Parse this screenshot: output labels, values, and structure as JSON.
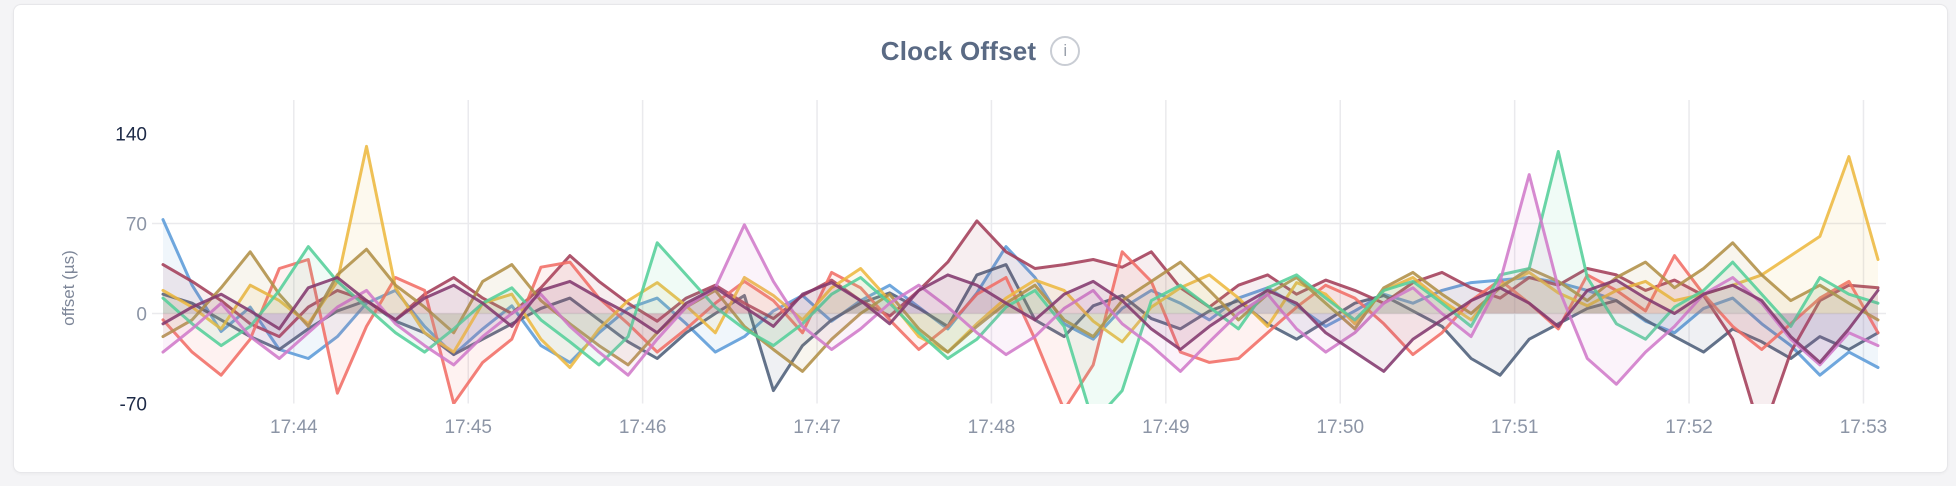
{
  "header": {
    "title": "Clock Offset",
    "info_icon_glyph": "i"
  },
  "colors": {
    "page_background": "#f4f4f6",
    "card_background": "#ffffff",
    "card_border": "#e7e7ea",
    "title_text": "#5a6a84",
    "tick_text": "#8c95a6",
    "tick_text_strong": "#1d2a47",
    "gridline": "#eaeaed"
  },
  "chart_data": {
    "type": "line",
    "title": "Clock Offset",
    "xlabel": "",
    "ylabel": "offset (µs)",
    "ylim": [
      -70,
      140
    ],
    "grid": true,
    "legend_position": "none",
    "x_start_time": "17:43:15",
    "x_interval_seconds": 10,
    "xticks": [
      "17:44",
      "17:45",
      "17:46",
      "17:47",
      "17:48",
      "17:49",
      "17:50",
      "17:51",
      "17:52",
      "17:53"
    ],
    "yticks": [
      {
        "value": 140,
        "label": "140",
        "strong": true,
        "grid": false
      },
      {
        "value": 70,
        "label": "70",
        "strong": false,
        "grid": true
      },
      {
        "value": 0,
        "label": "0",
        "strong": false,
        "grid": true
      },
      {
        "value": -70,
        "label": "-70",
        "strong": true,
        "grid": false
      }
    ],
    "series": [
      {
        "name": "blue",
        "color": "#5b9bd8",
        "values": [
          73,
          22,
          -14,
          5,
          -28,
          -35,
          -18,
          8,
          18,
          -10,
          -32,
          -12,
          6,
          -25,
          -38,
          -15,
          4,
          12,
          -8,
          -30,
          -18,
          2,
          14,
          -6,
          10,
          22,
          5,
          -12,
          16,
          52,
          28,
          -8,
          -20,
          4,
          18,
          8,
          -5,
          12,
          20,
          6,
          -10,
          2,
          15,
          8,
          18,
          24,
          26,
          28,
          24,
          18,
          10,
          -6,
          -15,
          4,
          12,
          -8,
          -25,
          -48,
          -30,
          -42
        ]
      },
      {
        "name": "slate",
        "color": "#4d5e7a",
        "values": [
          15,
          8,
          -5,
          -18,
          -28,
          -12,
          2,
          10,
          -6,
          -15,
          -32,
          -20,
          -8,
          4,
          12,
          -5,
          -22,
          -35,
          -15,
          0,
          14,
          -60,
          -25,
          -5,
          8,
          16,
          4,
          -10,
          30,
          38,
          -5,
          -18,
          6,
          14,
          -4,
          -12,
          2,
          10,
          -8,
          -20,
          -6,
          8,
          14,
          2,
          -10,
          -35,
          -48,
          -20,
          -8,
          4,
          10,
          -5,
          -18,
          -30,
          -12,
          -22,
          -35,
          -18,
          -28,
          -15
        ]
      },
      {
        "name": "maroon",
        "color": "#a33e59",
        "values": [
          38,
          25,
          10,
          -8,
          -18,
          5,
          18,
          10,
          -5,
          15,
          28,
          12,
          0,
          20,
          45,
          25,
          8,
          -6,
          12,
          22,
          8,
          -4,
          14,
          26,
          10,
          -2,
          18,
          40,
          72,
          48,
          35,
          38,
          42,
          36,
          48,
          20,
          5,
          22,
          30,
          15,
          26,
          18,
          8,
          24,
          32,
          20,
          12,
          28,
          22,
          35,
          30,
          18,
          26,
          14,
          -20,
          -95,
          -30,
          10,
          22,
          20
        ]
      },
      {
        "name": "salmon",
        "color": "#f16d65",
        "values": [
          -5,
          -30,
          -48,
          -20,
          35,
          42,
          -62,
          -10,
          28,
          18,
          -70,
          -38,
          -20,
          36,
          40,
          12,
          -8,
          -30,
          -12,
          8,
          25,
          10,
          -15,
          32,
          20,
          -5,
          -28,
          -10,
          15,
          28,
          -20,
          -75,
          -40,
          48,
          25,
          -30,
          -38,
          -35,
          -15,
          5,
          22,
          12,
          -8,
          -32,
          -15,
          10,
          26,
          8,
          -12,
          30,
          18,
          2,
          45,
          15,
          -10,
          -28,
          -8,
          12,
          25,
          -15
        ]
      },
      {
        "name": "yellow",
        "color": "#edb840",
        "values": [
          18,
          5,
          -12,
          22,
          10,
          -8,
          25,
          130,
          20,
          -15,
          -30,
          8,
          15,
          -20,
          -42,
          -12,
          10,
          24,
          6,
          -15,
          28,
          14,
          -5,
          20,
          35,
          10,
          -18,
          -30,
          -8,
          12,
          26,
          18,
          -6,
          -22,
          5,
          20,
          30,
          12,
          -10,
          24,
          15,
          -8,
          18,
          28,
          10,
          -5,
          22,
          32,
          16,
          6,
          18,
          25,
          10,
          15,
          22,
          30,
          45,
          60,
          122,
          42
        ]
      },
      {
        "name": "olive",
        "color": "#b08f47",
        "values": [
          -18,
          -5,
          20,
          48,
          15,
          -10,
          30,
          50,
          22,
          5,
          -15,
          25,
          38,
          10,
          -8,
          -25,
          -40,
          -15,
          5,
          18,
          -10,
          -28,
          -45,
          -20,
          0,
          15,
          -12,
          -30,
          -10,
          8,
          22,
          -5,
          -18,
          10,
          25,
          40,
          18,
          -5,
          15,
          28,
          8,
          -12,
          20,
          32,
          15,
          0,
          20,
          35,
          25,
          10,
          28,
          40,
          20,
          35,
          55,
          30,
          10,
          22,
          8,
          -5
        ]
      },
      {
        "name": "green",
        "color": "#54cf9a",
        "values": [
          12,
          -8,
          -25,
          -10,
          18,
          52,
          25,
          5,
          -15,
          -30,
          -12,
          8,
          20,
          -5,
          -22,
          -40,
          -18,
          55,
          30,
          5,
          -12,
          -25,
          -8,
          15,
          28,
          8,
          -15,
          -35,
          -20,
          5,
          18,
          -10,
          -85,
          -60,
          10,
          22,
          5,
          -12,
          20,
          30,
          12,
          -5,
          18,
          25,
          8,
          -10,
          30,
          35,
          126,
          28,
          -8,
          -20,
          5,
          18,
          40,
          15,
          -10,
          28,
          15,
          8
        ]
      },
      {
        "name": "orchid",
        "color": "#d07ac9",
        "values": [
          -30,
          -12,
          8,
          -18,
          -35,
          -15,
          5,
          18,
          -8,
          -25,
          -40,
          -18,
          0,
          15,
          -10,
          -30,
          -48,
          -20,
          5,
          20,
          69,
          25,
          -10,
          -28,
          -12,
          8,
          22,
          5,
          -15,
          -32,
          -18,
          4,
          18,
          -8,
          -25,
          -45,
          -22,
          0,
          15,
          -12,
          -30,
          -15,
          8,
          20,
          0,
          -18,
          25,
          108,
          20,
          -35,
          -55,
          -30,
          -10,
          15,
          28,
          8,
          -20,
          -40,
          -15,
          -25
        ]
      },
      {
        "name": "plum",
        "color": "#83396e",
        "values": [
          -8,
          5,
          15,
          2,
          -12,
          20,
          28,
          10,
          -5,
          12,
          22,
          8,
          -10,
          18,
          25,
          12,
          0,
          -15,
          8,
          20,
          5,
          -10,
          15,
          24,
          10,
          -8,
          18,
          30,
          22,
          8,
          -5,
          15,
          25,
          10,
          -12,
          -28,
          -10,
          5,
          18,
          8,
          -15,
          -30,
          -45,
          -20,
          -5,
          10,
          20,
          8,
          -10,
          18,
          26,
          12,
          0,
          15,
          22,
          10,
          -18,
          -38,
          -12,
          18
        ]
      }
    ]
  }
}
